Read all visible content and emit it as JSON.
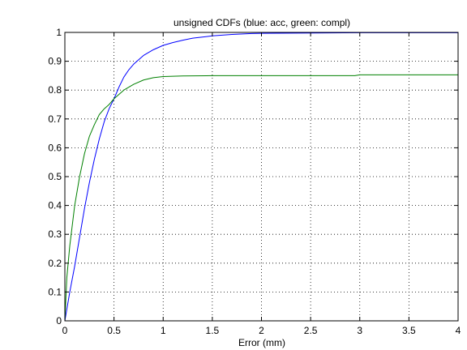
{
  "chart_data": {
    "type": "line",
    "title": "unsigned CDFs (blue: acc, green: compl)",
    "xlabel": "Error (mm)",
    "ylabel": "",
    "xlim": [
      0,
      4
    ],
    "ylim": [
      0,
      1
    ],
    "x_ticks": [
      "0",
      "0.5",
      "1",
      "1.5",
      "2",
      "2.5",
      "3",
      "3.5",
      "4"
    ],
    "y_ticks": [
      "0",
      "0.1",
      "0.2",
      "0.3",
      "0.4",
      "0.5",
      "0.6",
      "0.7",
      "0.8",
      "0.9",
      "1"
    ],
    "grid": true,
    "series": [
      {
        "color": "#0000ff",
        "x": [
          0,
          0.05,
          0.1,
          0.15,
          0.2,
          0.25,
          0.3,
          0.35,
          0.4,
          0.45,
          0.5,
          0.55,
          0.6,
          0.65,
          0.7,
          0.8,
          0.9,
          1.0,
          1.1,
          1.2,
          1.3,
          1.5,
          1.7,
          1.9,
          2.0,
          2.5,
          3.0,
          3.5,
          4.0
        ],
        "y": [
          0.0,
          0.1,
          0.19,
          0.29,
          0.39,
          0.48,
          0.56,
          0.63,
          0.69,
          0.735,
          0.77,
          0.81,
          0.845,
          0.87,
          0.89,
          0.92,
          0.94,
          0.955,
          0.965,
          0.973,
          0.98,
          0.988,
          0.993,
          0.996,
          0.997,
          0.998,
          0.999,
          0.999,
          0.999
        ]
      },
      {
        "color": "#008000",
        "x": [
          0,
          0.02,
          0.05,
          0.1,
          0.15,
          0.2,
          0.25,
          0.3,
          0.35,
          0.4,
          0.45,
          0.5,
          0.6,
          0.7,
          0.8,
          0.9,
          1.0,
          1.2,
          1.5,
          2.0,
          2.5,
          2.95,
          3.0,
          3.5,
          4.0
        ],
        "y": [
          0.0,
          0.15,
          0.26,
          0.4,
          0.5,
          0.58,
          0.64,
          0.68,
          0.715,
          0.735,
          0.75,
          0.77,
          0.8,
          0.82,
          0.835,
          0.843,
          0.847,
          0.849,
          0.85,
          0.85,
          0.85,
          0.85,
          0.853,
          0.853,
          0.853
        ]
      }
    ]
  }
}
